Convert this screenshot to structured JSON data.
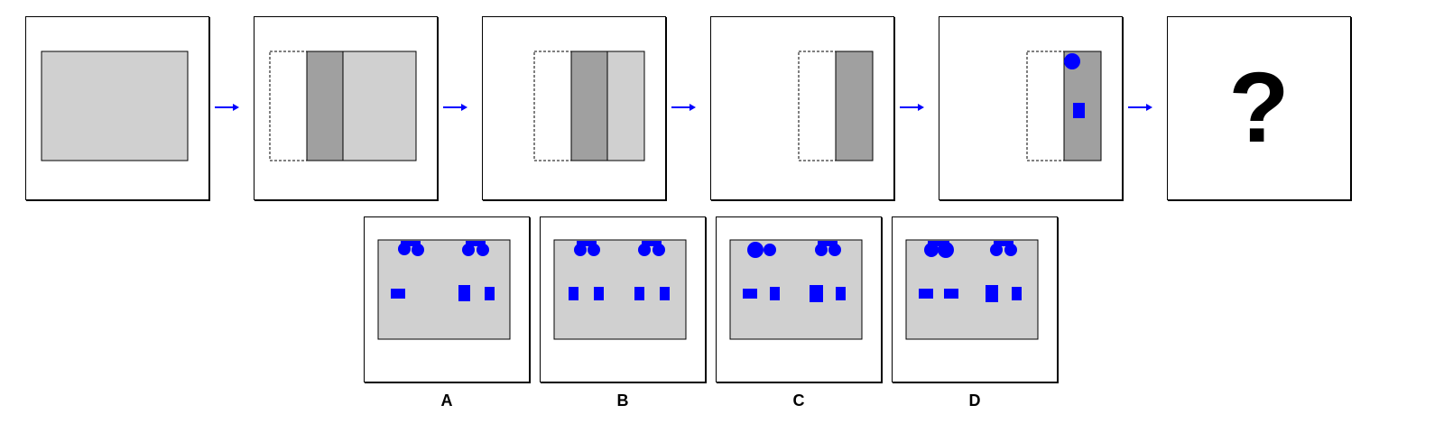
{
  "colors": {
    "light_gray": "#d0d0d0",
    "dark_gray": "#a0a0a0",
    "shape_blue": "#0000ff",
    "arrow_blue": "#0000ff",
    "outline": "#000000"
  },
  "sequence": [
    {
      "panel": "full-sheet"
    },
    {
      "panel": "fold-left-strip"
    },
    {
      "panel": "fold-again"
    },
    {
      "panel": "folded-strip"
    },
    {
      "panel": "punched-strip",
      "holes": [
        "circle",
        "rectangle"
      ]
    },
    {
      "panel": "unknown",
      "symbol": "?"
    }
  ],
  "arrow_icon": "right-arrow-icon",
  "options": [
    {
      "label": "A"
    },
    {
      "label": "B"
    },
    {
      "label": "C"
    },
    {
      "label": "D"
    }
  ]
}
